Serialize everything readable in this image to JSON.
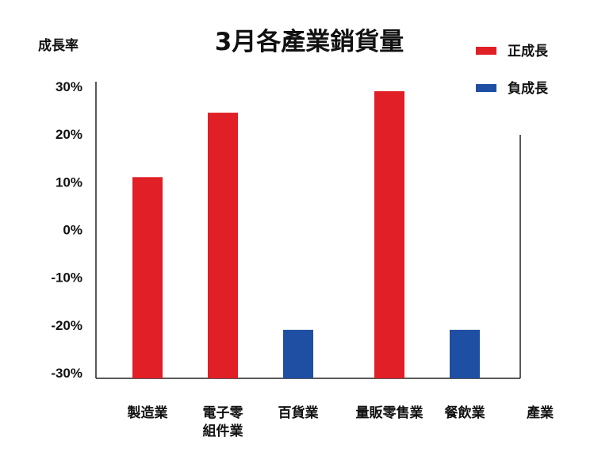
{
  "chart_data": {
    "type": "bar",
    "title": "3月各產業銷貨量",
    "ylabel": "成長率",
    "xlabel": "產業",
    "ylim": [
      -30,
      30
    ],
    "yticks": [
      "30%",
      "20%",
      "10%",
      "0%",
      "-10%",
      "-20%",
      "-30%"
    ],
    "categories": [
      [
        "製造業"
      ],
      [
        "電子零",
        "組件業"
      ],
      [
        "百貨業"
      ],
      [
        "量販零售業"
      ],
      [
        "餐飲業"
      ]
    ],
    "values": [
      11,
      24.5,
      -21,
      29,
      -21
    ],
    "colors": {
      "positive": "#E01F26",
      "negative": "#1F4FA3"
    },
    "legend": [
      {
        "name": "正成長",
        "color": "#E01F26"
      },
      {
        "name": "負成長",
        "color": "#1F4FA3"
      }
    ],
    "legend_position": "top-right",
    "grid": false
  }
}
